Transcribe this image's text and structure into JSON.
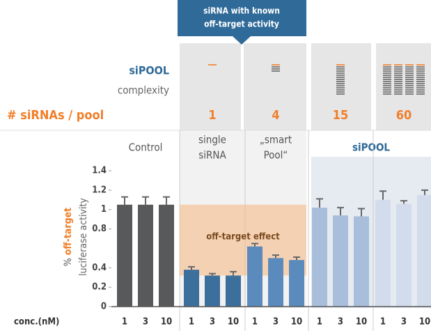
{
  "chart_data": {
    "type": "bar",
    "callout": [
      "siRNA with known",
      "off-target activity"
    ],
    "complexity_label": [
      "siPOOL",
      "complexity"
    ],
    "pool_label": "# siRNAs / pool",
    "ylabel": [
      "%",
      "off-target",
      "luciferase activity"
    ],
    "xlabel": "conc.(nM)",
    "categories": [
      "1",
      "3",
      "10"
    ],
    "annotation": "off-target effect",
    "pool_group_label": "siPOOL",
    "ylim": [
      0,
      1.4
    ],
    "yticks": [
      0,
      0.2,
      0.4,
      0.8,
      1,
      1.2,
      1.4
    ],
    "groups": [
      {
        "label": [
          "Control"
        ],
        "color": "#58595b",
        "values": [
          1.05,
          1.05,
          1.05
        ],
        "errors": [
          0.08,
          0.08,
          0.08
        ]
      },
      {
        "label": [
          "single",
          "siRNA"
        ],
        "count": 1,
        "color": "#3d6f9c",
        "values": [
          0.38,
          0.32,
          0.32
        ],
        "errors": [
          0.03,
          0.02,
          0.04
        ]
      },
      {
        "label": [
          "„smart",
          "Pool“"
        ],
        "count": 4,
        "color": "#5b8bbd",
        "values": [
          0.62,
          0.5,
          0.48
        ],
        "errors": [
          0.03,
          0.03,
          0.03
        ]
      },
      {
        "count": 15,
        "color": "#a8bedb",
        "values": [
          1.02,
          0.94,
          0.93
        ],
        "errors": [
          0.09,
          0.08,
          0.08
        ]
      },
      {
        "count": 60,
        "color": "#d2dcec",
        "values": [
          1.1,
          1.06,
          1.15
        ],
        "errors": [
          0.09,
          0.03,
          0.05
        ]
      }
    ]
  }
}
